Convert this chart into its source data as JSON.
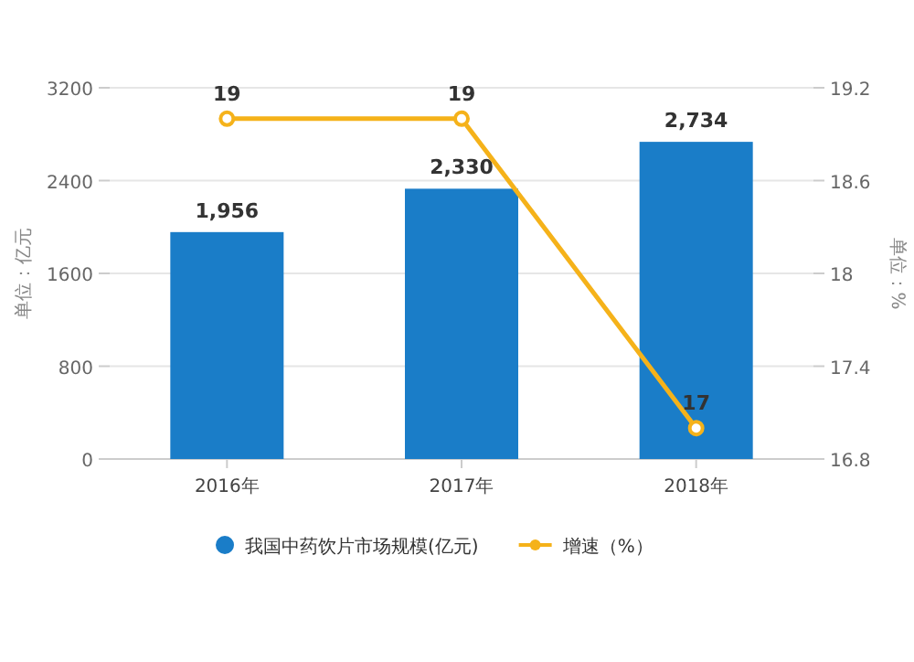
{
  "chart_data": {
    "type": "bar",
    "categories": [
      "2016年",
      "2017年",
      "2018年"
    ],
    "series": [
      {
        "name": "我国中药饮片市场规模(亿元)",
        "color": "#1a7dc8",
        "values": [
          1956,
          2330,
          2734
        ],
        "value_labels": [
          "1,956",
          "2,330",
          "2,734"
        ]
      },
      {
        "name": "增速（%）",
        "type": "line",
        "axis": "y2",
        "color": "#f5b21a",
        "values": [
          19,
          19,
          17
        ],
        "value_labels": [
          "19",
          "19",
          "17"
        ],
        "marker": "circle"
      }
    ],
    "ylabel": "单位：亿元",
    "y2label": "单位：%",
    "ylim": [
      0,
      3200
    ],
    "yticks": [
      0,
      800,
      1600,
      2400,
      3200
    ],
    "y2lim": [
      16.8,
      19.2
    ],
    "y2ticks": [
      16.8,
      17.4,
      18,
      18.6,
      19.2
    ],
    "grid": "y",
    "legend": "bottom"
  }
}
